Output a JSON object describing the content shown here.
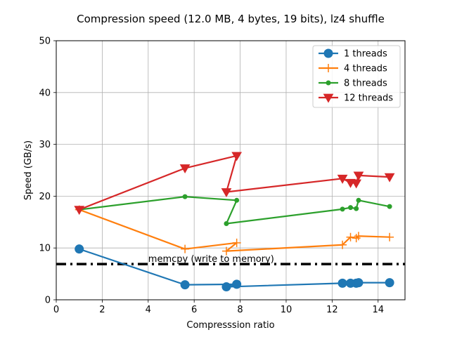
{
  "chart_data": {
    "type": "line",
    "title": "Compression speed (12.0 MB, 4 bytes, 19 bits), lz4 shuffle",
    "xlabel": "Compresssion ratio",
    "ylabel": "Speed (GB/s)",
    "xlim": [
      0,
      15.17
    ],
    "ylim": [
      0,
      50
    ],
    "xticks": [
      0,
      2,
      4,
      6,
      8,
      10,
      12,
      14
    ],
    "yticks": [
      0,
      10,
      20,
      30,
      40,
      50
    ],
    "grid": true,
    "legend_position": "top-right",
    "series": [
      {
        "name": "1 threads",
        "color": "#1f77b4",
        "marker": "circle",
        "x": [
          1.0,
          5.6,
          7.85,
          7.4,
          12.45,
          12.8,
          13.05,
          13.15,
          14.5
        ],
        "y": [
          9.8,
          2.9,
          3.0,
          2.5,
          3.2,
          3.2,
          3.2,
          3.3,
          3.3
        ]
      },
      {
        "name": "4 threads",
        "color": "#ff7f0e",
        "marker": "plus",
        "x": [
          1.0,
          5.6,
          7.85,
          7.4,
          12.45,
          12.8,
          13.05,
          13.15,
          14.5
        ],
        "y": [
          17.4,
          9.8,
          11.0,
          9.4,
          10.6,
          12.1,
          11.9,
          12.3,
          12.1
        ]
      },
      {
        "name": "8 threads",
        "color": "#2ca02c",
        "marker": "point",
        "x": [
          1.0,
          5.6,
          7.85,
          7.4,
          12.45,
          12.8,
          13.05,
          13.15,
          14.5
        ],
        "y": [
          17.4,
          19.9,
          19.2,
          14.7,
          17.5,
          17.8,
          17.6,
          19.2,
          18.0
        ]
      },
      {
        "name": "12 threads",
        "color": "#d62728",
        "marker": "triangle-down",
        "x": [
          1.0,
          5.6,
          7.85,
          7.4,
          12.45,
          12.8,
          13.05,
          13.15,
          14.5
        ],
        "y": [
          17.4,
          25.4,
          27.8,
          20.8,
          23.4,
          22.6,
          22.5,
          24.0,
          23.7
        ]
      }
    ],
    "reference_line": {
      "label": "memcpy (write to memory)",
      "y": 6.9,
      "color": "#000000",
      "style": "dash-dot"
    }
  }
}
